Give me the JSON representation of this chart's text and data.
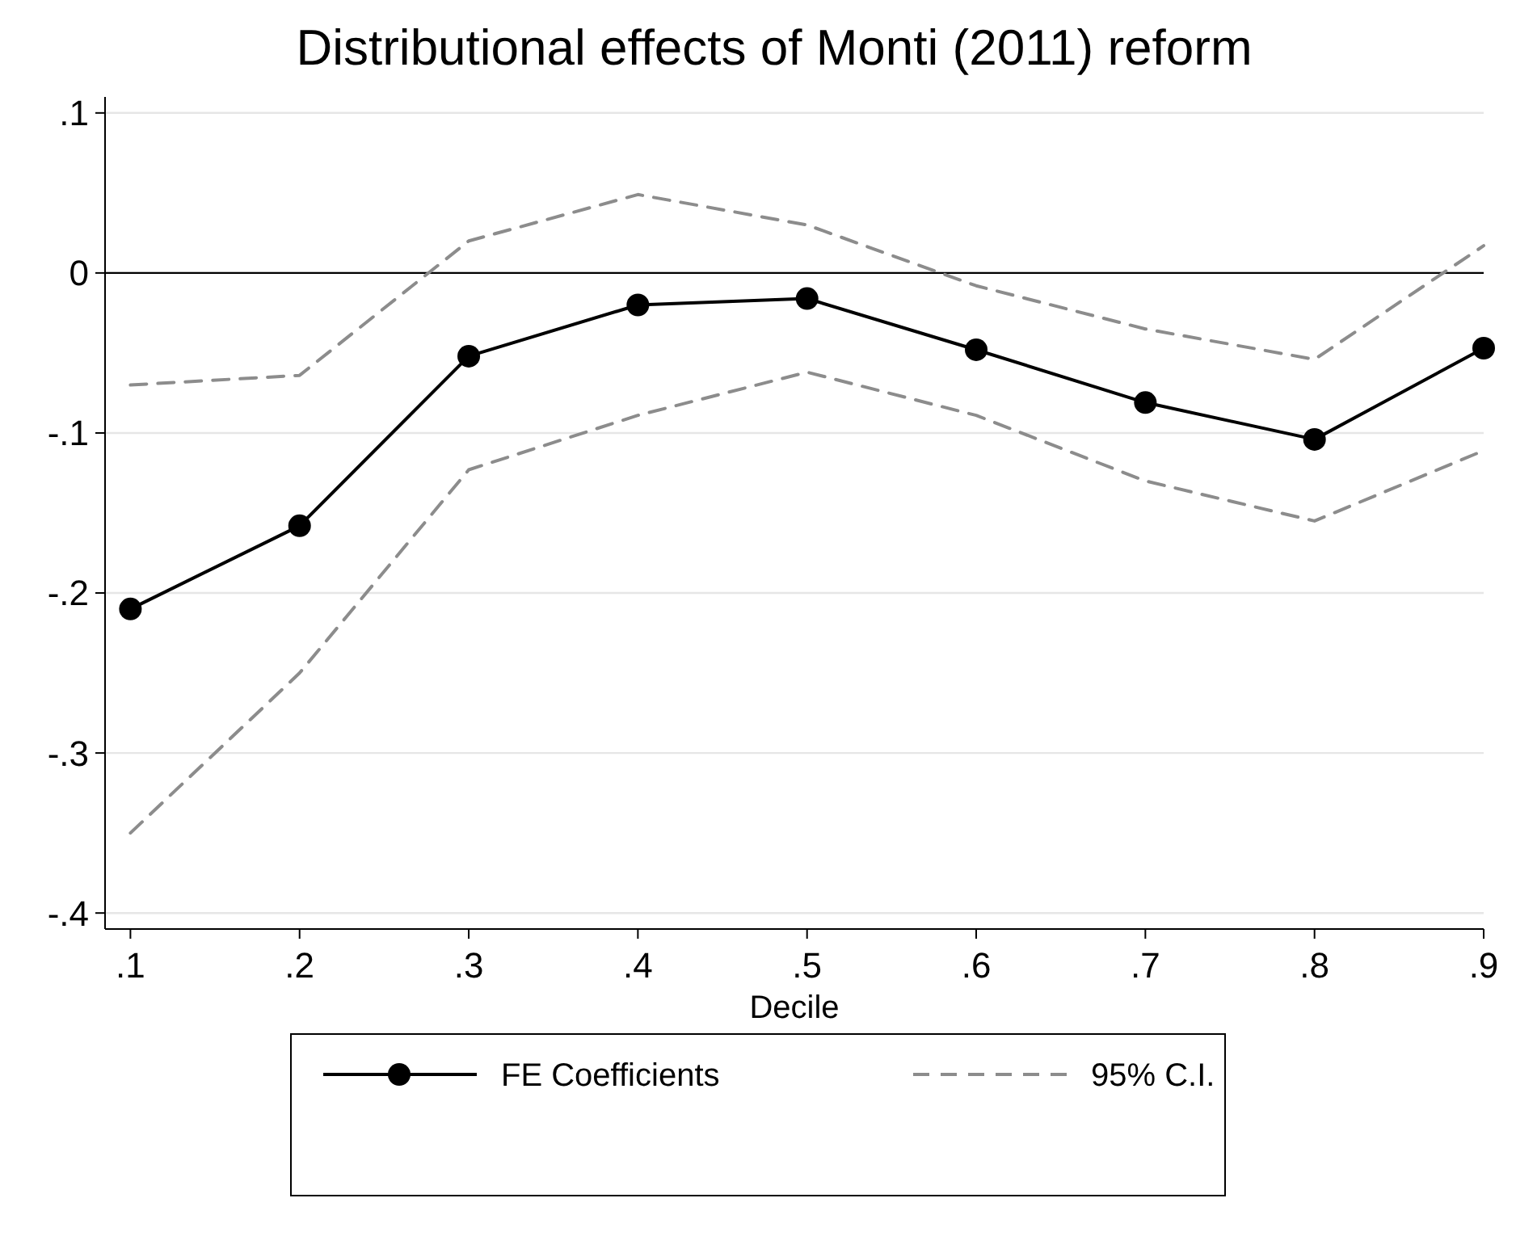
{
  "chart_data": {
    "type": "line",
    "title": "Distributional effects of Monti (2011) reform",
    "xlabel": "Decile",
    "x": [
      0.1,
      0.2,
      0.3,
      0.4,
      0.5,
      0.6,
      0.7,
      0.8,
      0.9
    ],
    "series": [
      {
        "name": "FE Coefficients",
        "color": "#000000",
        "marker": "circle",
        "line_style": "solid",
        "values": [
          -0.21,
          -0.158,
          -0.052,
          -0.02,
          -0.016,
          -0.048,
          -0.081,
          -0.104,
          -0.047
        ]
      },
      {
        "name": "95% C.I.",
        "color": "#8c8c8c",
        "marker": "none",
        "line_style": "dashed",
        "values": [
          -0.07,
          -0.064,
          0.02,
          0.049,
          0.03,
          -0.008,
          -0.035,
          -0.054,
          0.017
        ]
      },
      {
        "color": "#8c8c8c",
        "marker": "none",
        "line_style": "dashed",
        "values": [
          -0.35,
          -0.25,
          -0.123,
          -0.089,
          -0.062,
          -0.089,
          -0.13,
          -0.155,
          -0.111
        ]
      }
    ],
    "xlim": [
      0.085,
      0.9
    ],
    "ylim": [
      -0.41,
      0.11
    ],
    "xticks": [
      {
        "value": 0.1,
        "label": ".1"
      },
      {
        "value": 0.2,
        "label": ".2"
      },
      {
        "value": 0.3,
        "label": ".3"
      },
      {
        "value": 0.4,
        "label": ".4"
      },
      {
        "value": 0.5,
        "label": ".5"
      },
      {
        "value": 0.6,
        "label": ".6"
      },
      {
        "value": 0.7,
        "label": ".7"
      },
      {
        "value": 0.8,
        "label": ".8"
      },
      {
        "value": 0.9,
        "label": ".9"
      }
    ],
    "yticks": [
      {
        "value": -0.4,
        "label": "-.4"
      },
      {
        "value": -0.3,
        "label": "-.3"
      },
      {
        "value": -0.2,
        "label": "-.2"
      },
      {
        "value": -0.1,
        "label": "-.1"
      },
      0,
      {
        "value": 0.1,
        "label": ".1"
      }
    ],
    "ref_lines": [
      {
        "axis": "y",
        "value": 0,
        "color": "#000000"
      }
    ],
    "grid": "y",
    "legend": "bottom"
  }
}
